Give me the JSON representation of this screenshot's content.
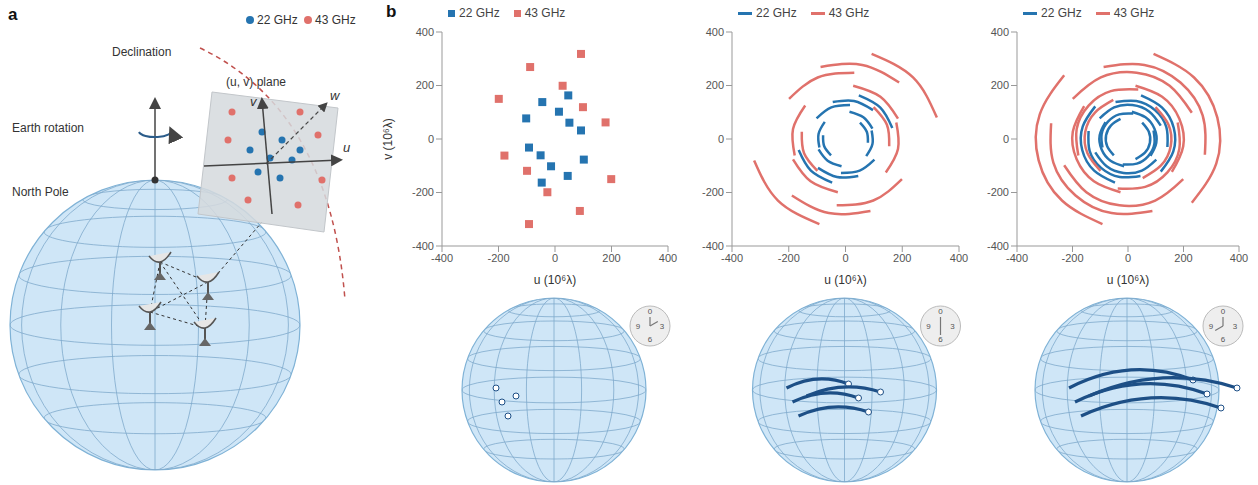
{
  "panel_labels": [
    "a",
    "b"
  ],
  "diagram": {
    "legend": [
      {
        "label": "22 GHz",
        "color": "#2574b0"
      },
      {
        "label": "43 GHz",
        "color": "#e0716b"
      }
    ],
    "declination": "Declination",
    "uv_plane": "(u, v) plane",
    "earth_rotation": "Earth rotation",
    "north_pole": "North Pole",
    "axes": {
      "u": "u",
      "v": "v",
      "w": "w"
    }
  },
  "clock_labels": [
    "0",
    "3",
    "6",
    "9"
  ],
  "chart_data": [
    {
      "type": "scatter",
      "xlabel": "u (10⁶λ)",
      "ylabel": "v (10⁶λ)",
      "xlim": [
        -400,
        400
      ],
      "ylim": [
        -400,
        400
      ],
      "xticks": [
        -400,
        -200,
        0,
        200,
        400
      ],
      "yticks": [
        -400,
        -200,
        0,
        200,
        400
      ],
      "legend": "top",
      "series": [
        {
          "name": "22 GHz",
          "color": "#2574b0",
          "marker": "square",
          "points": [
            [
              -45,
              138
            ],
            [
              45,
              -138
            ],
            [
              47,
              163
            ],
            [
              -47,
              -163
            ],
            [
              -102,
              77
            ],
            [
              102,
              -77
            ],
            [
              92,
              32
            ],
            [
              -92,
              -32
            ],
            [
              51,
              61
            ],
            [
              -51,
              -61
            ],
            [
              14,
              102
            ],
            [
              -14,
              -102
            ]
          ]
        },
        {
          "name": "43 GHz",
          "color": "#e0716b",
          "marker": "square",
          "points": [
            [
              -88,
              269
            ],
            [
              88,
              -269
            ],
            [
              92,
              318
            ],
            [
              -92,
              -318
            ],
            [
              -199,
              150
            ],
            [
              199,
              -150
            ],
            [
              179,
              62
            ],
            [
              -179,
              -62
            ],
            [
              99,
              119
            ],
            [
              -99,
              -119
            ],
            [
              27,
              199
            ],
            [
              -27,
              -199
            ]
          ]
        }
      ]
    },
    {
      "type": "line",
      "xlabel": "u (10⁶λ)",
      "xlim": [
        -400,
        400
      ],
      "ylim": [
        -400,
        400
      ],
      "xticks": [
        -400,
        -200,
        0,
        200,
        400
      ],
      "yticks": [
        -400,
        -200,
        0,
        200,
        400
      ],
      "legend": "top",
      "series": [
        {
          "name": "22 GHz",
          "color": "#2574b0",
          "line_style": "solid",
          "tracks": [
            [
              [
                -45,
                138
              ],
              [
                30,
                142
              ],
              [
                97,
                108
              ]
            ],
            [
              [
                45,
                -138
              ],
              [
                -30,
                -142
              ],
              [
                -97,
                -108
              ]
            ],
            [
              [
                47,
                163
              ],
              [
                122,
                118
              ],
              [
                165,
                41
              ]
            ],
            [
              [
                -47,
                -163
              ],
              [
                -122,
                -118
              ],
              [
                -165,
                -41
              ]
            ],
            [
              [
                -102,
                77
              ],
              [
                -50,
                118
              ],
              [
                16,
                127
              ]
            ],
            [
              [
                102,
                -77
              ],
              [
                50,
                -118
              ],
              [
                -16,
                -127
              ]
            ],
            [
              [
                92,
                32
              ],
              [
                95,
                -19
              ],
              [
                73,
                -64
              ]
            ],
            [
              [
                -92,
                -32
              ],
              [
                -95,
                19
              ],
              [
                -73,
                64
              ]
            ],
            [
              [
                51,
                61
              ],
              [
                75,
                27
              ],
              [
                79,
                -14
              ]
            ],
            [
              [
                -51,
                -61
              ],
              [
                -75,
                -27
              ],
              [
                -79,
                14
              ]
            ],
            [
              [
                14,
                102
              ],
              [
                63,
                81
              ],
              [
                95,
                39
              ]
            ],
            [
              [
                -14,
                -102
              ],
              [
                -63,
                -81
              ],
              [
                -95,
                -39
              ]
            ]
          ]
        },
        {
          "name": "43 GHz",
          "color": "#e0716b",
          "line_style": "solid",
          "tracks": [
            [
              [
                -88,
                269
              ],
              [
                59,
                277
              ],
              [
                189,
                211
              ]
            ],
            [
              [
                88,
                -269
              ],
              [
                -59,
                -277
              ],
              [
                -189,
                -211
              ]
            ],
            [
              [
                92,
                318
              ],
              [
                238,
                230
              ],
              [
                322,
                80
              ]
            ],
            [
              [
                -92,
                -318
              ],
              [
                -238,
                -230
              ],
              [
                -322,
                -80
              ]
            ],
            [
              [
                -199,
                150
              ],
              [
                -98,
                230
              ],
              [
                31,
                248
              ]
            ],
            [
              [
                199,
                -150
              ],
              [
                98,
                -230
              ],
              [
                -31,
                -248
              ]
            ],
            [
              [
                179,
                62
              ],
              [
                185,
                -37
              ],
              [
                142,
                -125
              ]
            ],
            [
              [
                -179,
                -62
              ],
              [
                -185,
                37
              ],
              [
                -142,
                125
              ]
            ],
            [
              [
                99,
                119
              ],
              [
                146,
                53
              ],
              [
                154,
                -27
              ]
            ],
            [
              [
                -99,
                -119
              ],
              [
                -146,
                -53
              ],
              [
                -154,
                27
              ]
            ],
            [
              [
                27,
                199
              ],
              [
                123,
                158
              ],
              [
                185,
                76
              ]
            ],
            [
              [
                -27,
                -199
              ],
              [
                -123,
                -158
              ],
              [
                -185,
                -76
              ]
            ]
          ]
        }
      ]
    },
    {
      "type": "line",
      "xlabel": "u (10⁶λ)",
      "xlim": [
        -400,
        400
      ],
      "ylim": [
        -400,
        400
      ],
      "xticks": [
        -400,
        -200,
        0,
        200,
        400
      ],
      "yticks": [
        -400,
        -200,
        0,
        200,
        400
      ],
      "legend": "top",
      "series": [
        {
          "name": "22 GHz",
          "color": "#2574b0",
          "line_style": "solid",
          "tracks": [
            [
              [
                -45,
                138
              ],
              [
                30,
                142
              ],
              [
                97,
                108
              ],
              [
                138,
                45
              ],
              [
                142,
                -30
              ]
            ],
            [
              [
                45,
                -138
              ],
              [
                -30,
                -142
              ],
              [
                -97,
                -108
              ],
              [
                -138,
                -45
              ],
              [
                -142,
                30
              ]
            ],
            [
              [
                47,
                163
              ],
              [
                122,
                118
              ],
              [
                165,
                41
              ],
              [
                163,
                -47
              ],
              [
                118,
                -122
              ]
            ],
            [
              [
                -47,
                -163
              ],
              [
                -122,
                -118
              ],
              [
                -165,
                -41
              ],
              [
                -163,
                47
              ],
              [
                -118,
                122
              ]
            ],
            [
              [
                -102,
                77
              ],
              [
                -50,
                118
              ],
              [
                16,
                127
              ],
              [
                77,
                102
              ],
              [
                118,
                50
              ]
            ],
            [
              [
                102,
                -77
              ],
              [
                50,
                -118
              ],
              [
                -16,
                -127
              ],
              [
                -77,
                -102
              ],
              [
                -118,
                -50
              ]
            ],
            [
              [
                92,
                32
              ],
              [
                95,
                -19
              ],
              [
                73,
                -64
              ],
              [
                32,
                -92
              ],
              [
                -19,
                -95
              ]
            ],
            [
              [
                -92,
                -32
              ],
              [
                -95,
                19
              ],
              [
                -73,
                64
              ],
              [
                -32,
                92
              ],
              [
                19,
                95
              ]
            ],
            [
              [
                51,
                61
              ],
              [
                75,
                27
              ],
              [
                79,
                -14
              ],
              [
                61,
                -51
              ],
              [
                27,
                -75
              ]
            ],
            [
              [
                -51,
                -61
              ],
              [
                -75,
                -27
              ],
              [
                -79,
                14
              ],
              [
                -61,
                51
              ],
              [
                -27,
                75
              ]
            ],
            [
              [
                14,
                102
              ],
              [
                63,
                81
              ],
              [
                95,
                39
              ],
              [
                102,
                -14
              ],
              [
                81,
                -63
              ]
            ],
            [
              [
                -14,
                -102
              ],
              [
                -63,
                -81
              ],
              [
                -95,
                -39
              ],
              [
                -102,
                14
              ],
              [
                -81,
                63
              ]
            ]
          ]
        },
        {
          "name": "43 GHz",
          "color": "#e0716b",
          "line_style": "solid",
          "tracks": [
            [
              [
                -88,
                269
              ],
              [
                59,
                277
              ],
              [
                189,
                211
              ],
              [
                269,
                88
              ],
              [
                277,
                -59
              ]
            ],
            [
              [
                88,
                -269
              ],
              [
                -59,
                -277
              ],
              [
                -189,
                -211
              ],
              [
                -269,
                -88
              ],
              [
                -277,
                59
              ]
            ],
            [
              [
                92,
                318
              ],
              [
                238,
                230
              ],
              [
                322,
                80
              ],
              [
                318,
                -92
              ],
              [
                230,
                -238
              ]
            ],
            [
              [
                -92,
                -318
              ],
              [
                -238,
                -230
              ],
              [
                -322,
                -80
              ],
              [
                -318,
                92
              ],
              [
                -230,
                238
              ]
            ],
            [
              [
                -199,
                150
              ],
              [
                -98,
                230
              ],
              [
                31,
                248
              ],
              [
                150,
                199
              ],
              [
                230,
                98
              ]
            ],
            [
              [
                199,
                -150
              ],
              [
                98,
                -230
              ],
              [
                -31,
                -248
              ],
              [
                -150,
                -199
              ],
              [
                -230,
                -98
              ]
            ],
            [
              [
                179,
                62
              ],
              [
                185,
                -37
              ],
              [
                142,
                -125
              ],
              [
                62,
                -179
              ],
              [
                -37,
                -185
              ]
            ],
            [
              [
                -179,
                -62
              ],
              [
                -185,
                37
              ],
              [
                -142,
                125
              ],
              [
                -62,
                179
              ],
              [
                37,
                185
              ]
            ],
            [
              [
                99,
                119
              ],
              [
                146,
                53
              ],
              [
                154,
                -27
              ],
              [
                119,
                -99
              ],
              [
                53,
                -146
              ]
            ],
            [
              [
                -99,
                -119
              ],
              [
                -146,
                -53
              ],
              [
                -154,
                27
              ],
              [
                -119,
                99
              ],
              [
                -53,
                146
              ]
            ],
            [
              [
                27,
                199
              ],
              [
                123,
                158
              ],
              [
                185,
                76
              ],
              [
                199,
                -27
              ],
              [
                158,
                -123
              ]
            ],
            [
              [
                -27,
                -199
              ],
              [
                -123,
                -158
              ],
              [
                -185,
                -76
              ],
              [
                -199,
                27
              ],
              [
                -158,
                123
              ]
            ]
          ]
        }
      ]
    }
  ]
}
